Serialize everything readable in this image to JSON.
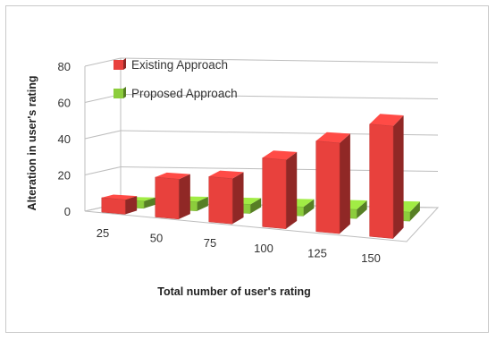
{
  "chart_data": {
    "type": "bar",
    "title": "",
    "xlabel": "Total number of user's rating",
    "ylabel": "Alteration in user's rating",
    "categories": [
      "25",
      "50",
      "75",
      "100",
      "125",
      "150"
    ],
    "ylim": [
      0,
      80
    ],
    "yticks": [
      0,
      20,
      40,
      60,
      80
    ],
    "grid": true,
    "legend_position": "top-left",
    "series": [
      {
        "name": "Existing Approach",
        "values": [
          8,
          22,
          25,
          38,
          50,
          62
        ],
        "color": "#e8413d"
      },
      {
        "name": "Proposed Approach",
        "values": [
          4,
          5,
          5,
          5,
          5,
          5
        ],
        "color": "#8ccd3c"
      }
    ]
  }
}
